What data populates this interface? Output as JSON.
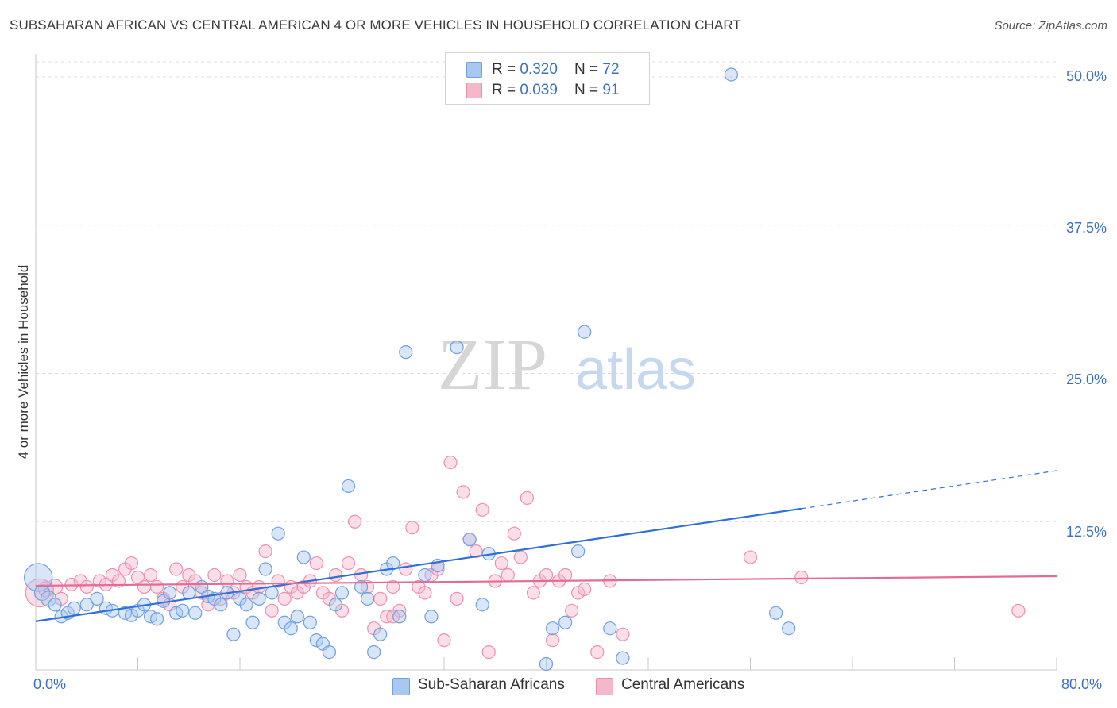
{
  "title": "SUBSAHARAN AFRICAN VS CENTRAL AMERICAN 4 OR MORE VEHICLES IN HOUSEHOLD CORRELATION CHART",
  "source": "Source: ZipAtlas.com",
  "watermark": {
    "zip": "ZIP",
    "atlas": "atlas"
  },
  "legend_top": [
    {
      "r_label": "R = ",
      "r_value": "0.320",
      "n_label": "N = ",
      "n_value": "72",
      "color": "#a8c8f0"
    },
    {
      "r_label": "R = ",
      "r_value": "0.039",
      "n_label": "N = ",
      "n_value": "91",
      "color": "#f5b8cb"
    }
  ],
  "legend_bottom": [
    {
      "label": "Sub-Saharan Africans",
      "color": "#a8c8f0"
    },
    {
      "label": "Central Americans",
      "color": "#f5b8cb"
    }
  ],
  "axis": {
    "x_min_label": "0.0%",
    "x_max_label": "80.0%",
    "y_ticks": [
      "12.5%",
      "25.0%",
      "37.5%",
      "50.0%"
    ],
    "ylabel": "4 or more Vehicles in Household"
  },
  "chart_data": {
    "type": "scatter",
    "xlim": [
      0,
      80
    ],
    "ylim": [
      0,
      51.5
    ],
    "y_gridlines": [
      12.5,
      25,
      37.5,
      50
    ],
    "series": [
      {
        "name": "Sub-Saharan Africans",
        "color": "#6fa0e0",
        "fill": "#a8c8f0",
        "trend": {
          "x0": 0,
          "y0": 4.1,
          "x1": 60,
          "y1": 13.6,
          "dash_to_x": 80,
          "dash_to_y": 16.8,
          "color": "#2f6fd6"
        },
        "points": [
          [
            0.2,
            7.8,
            22
          ],
          [
            0.5,
            6.5,
            12
          ],
          [
            1.0,
            6.0,
            12
          ],
          [
            1.5,
            5.5,
            10
          ],
          [
            2.0,
            4.5,
            10
          ],
          [
            2.5,
            4.8,
            10
          ],
          [
            3.0,
            5.2,
            10
          ],
          [
            4.0,
            5.5,
            10
          ],
          [
            4.8,
            6.0,
            10
          ],
          [
            5.5,
            5.2,
            10
          ],
          [
            6.0,
            5.0,
            10
          ],
          [
            7.0,
            4.8,
            10
          ],
          [
            7.5,
            4.6,
            10
          ],
          [
            8.0,
            5.0,
            10
          ],
          [
            8.5,
            5.5,
            10
          ],
          [
            9.0,
            4.5,
            10
          ],
          [
            9.5,
            4.3,
            10
          ],
          [
            10.0,
            5.8,
            10
          ],
          [
            10.5,
            6.5,
            10
          ],
          [
            11.0,
            4.8,
            10
          ],
          [
            11.5,
            5.0,
            10
          ],
          [
            12.0,
            6.5,
            10
          ],
          [
            12.5,
            4.8,
            10
          ],
          [
            13.0,
            7.0,
            10
          ],
          [
            13.5,
            6.2,
            10
          ],
          [
            14.0,
            6.0,
            10
          ],
          [
            14.5,
            5.5,
            10
          ],
          [
            15.0,
            6.5,
            10
          ],
          [
            15.5,
            3.0,
            10
          ],
          [
            16.0,
            6.0,
            10
          ],
          [
            16.5,
            5.5,
            10
          ],
          [
            17.0,
            4.0,
            10
          ],
          [
            17.5,
            6.0,
            10
          ],
          [
            18.0,
            8.5,
            10
          ],
          [
            18.5,
            6.5,
            10
          ],
          [
            19.0,
            11.5,
            10
          ],
          [
            19.5,
            4.0,
            10
          ],
          [
            20.0,
            3.5,
            10
          ],
          [
            20.5,
            4.5,
            10
          ],
          [
            21.0,
            9.5,
            10
          ],
          [
            21.5,
            4.0,
            10
          ],
          [
            22.0,
            2.5,
            10
          ],
          [
            22.5,
            2.2,
            10
          ],
          [
            23.0,
            1.5,
            10
          ],
          [
            23.5,
            5.5,
            10
          ],
          [
            24.0,
            6.5,
            10
          ],
          [
            24.5,
            15.5,
            10
          ],
          [
            25.5,
            7.0,
            10
          ],
          [
            26.0,
            6.0,
            10
          ],
          [
            26.5,
            1.5,
            10
          ],
          [
            27.0,
            3.0,
            10
          ],
          [
            27.5,
            8.5,
            10
          ],
          [
            28.0,
            9.0,
            10
          ],
          [
            28.5,
            4.5,
            10
          ],
          [
            29.0,
            26.8,
            10
          ],
          [
            30.5,
            8.0,
            10
          ],
          [
            31.0,
            4.5,
            10
          ],
          [
            31.5,
            8.8,
            10
          ],
          [
            33.0,
            27.2,
            10
          ],
          [
            34.0,
            11.0,
            10
          ],
          [
            35.0,
            5.5,
            10
          ],
          [
            35.5,
            9.8,
            10
          ],
          [
            40.0,
            0.5,
            10
          ],
          [
            40.5,
            3.5,
            10
          ],
          [
            41.5,
            4.0,
            10
          ],
          [
            42.5,
            10.0,
            10
          ],
          [
            43.0,
            28.5,
            10
          ],
          [
            45.0,
            3.5,
            10
          ],
          [
            46.0,
            1.0,
            10
          ],
          [
            54.5,
            50.2,
            10
          ],
          [
            58.0,
            4.8,
            10
          ],
          [
            59.0,
            3.5,
            10
          ]
        ]
      },
      {
        "name": "Central Americans",
        "color": "#ef8fae",
        "fill": "#f5b8cb",
        "trend": {
          "x0": 0,
          "y0": 7.1,
          "x1": 80,
          "y1": 7.9,
          "color": "#e36b95"
        },
        "points": [
          [
            0.3,
            6.5,
            22
          ],
          [
            0.8,
            6.8,
            12
          ],
          [
            1.5,
            7.0,
            12
          ],
          [
            2.0,
            6.0,
            10
          ],
          [
            2.8,
            7.2,
            10
          ],
          [
            3.5,
            7.5,
            10
          ],
          [
            4.0,
            7.0,
            10
          ],
          [
            5.0,
            7.5,
            10
          ],
          [
            5.5,
            7.2,
            10
          ],
          [
            6.0,
            8.0,
            10
          ],
          [
            6.5,
            7.5,
            10
          ],
          [
            7.0,
            8.5,
            10
          ],
          [
            7.5,
            9.0,
            10
          ],
          [
            8.0,
            7.8,
            10
          ],
          [
            8.5,
            7.0,
            10
          ],
          [
            9.0,
            8.0,
            10
          ],
          [
            9.5,
            7.0,
            10
          ],
          [
            10.0,
            6.0,
            10
          ],
          [
            10.5,
            5.5,
            10
          ],
          [
            11.0,
            8.5,
            10
          ],
          [
            11.5,
            7.0,
            10
          ],
          [
            12.0,
            8.0,
            10
          ],
          [
            12.5,
            7.5,
            10
          ],
          [
            13.0,
            6.5,
            10
          ],
          [
            13.5,
            5.5,
            10
          ],
          [
            14.0,
            8.0,
            10
          ],
          [
            14.5,
            6.0,
            10
          ],
          [
            15.0,
            7.5,
            10
          ],
          [
            15.5,
            6.5,
            10
          ],
          [
            16.0,
            8.0,
            10
          ],
          [
            16.5,
            7.0,
            10
          ],
          [
            17.0,
            6.5,
            10
          ],
          [
            17.5,
            7.0,
            10
          ],
          [
            18.0,
            10.0,
            10
          ],
          [
            18.5,
            5.0,
            10
          ],
          [
            19.0,
            7.5,
            10
          ],
          [
            19.5,
            6.0,
            10
          ],
          [
            20.0,
            7.0,
            10
          ],
          [
            20.5,
            6.5,
            10
          ],
          [
            21.0,
            7.0,
            10
          ],
          [
            21.5,
            7.5,
            10
          ],
          [
            22.0,
            9.0,
            10
          ],
          [
            22.5,
            6.5,
            10
          ],
          [
            23.0,
            6.0,
            10
          ],
          [
            23.5,
            8.0,
            10
          ],
          [
            24.0,
            5.0,
            10
          ],
          [
            24.5,
            9.0,
            10
          ],
          [
            25.0,
            12.5,
            10
          ],
          [
            25.5,
            8.0,
            10
          ],
          [
            26.0,
            7.0,
            10
          ],
          [
            26.5,
            3.5,
            10
          ],
          [
            27.0,
            6.0,
            10
          ],
          [
            27.5,
            4.5,
            10
          ],
          [
            28.0,
            7.0,
            10
          ],
          [
            28.5,
            5.0,
            10
          ],
          [
            29.0,
            8.5,
            10
          ],
          [
            29.5,
            12.0,
            10
          ],
          [
            30.0,
            7.0,
            10
          ],
          [
            30.5,
            6.5,
            10
          ],
          [
            31.0,
            8.0,
            10
          ],
          [
            31.5,
            8.5,
            10
          ],
          [
            32.0,
            2.5,
            10
          ],
          [
            32.5,
            17.5,
            10
          ],
          [
            33.0,
            6.0,
            10
          ],
          [
            33.5,
            15.0,
            10
          ],
          [
            34.0,
            11.0,
            10
          ],
          [
            34.5,
            10.0,
            10
          ],
          [
            35.0,
            13.5,
            10
          ],
          [
            35.5,
            1.5,
            10
          ],
          [
            36.0,
            7.5,
            10
          ],
          [
            36.5,
            9.0,
            10
          ],
          [
            37.0,
            8.0,
            10
          ],
          [
            37.5,
            11.5,
            10
          ],
          [
            38.0,
            9.5,
            10
          ],
          [
            38.5,
            14.5,
            10
          ],
          [
            39.0,
            6.5,
            10
          ],
          [
            39.5,
            7.5,
            10
          ],
          [
            40.0,
            8.0,
            10
          ],
          [
            40.5,
            2.5,
            10
          ],
          [
            41.0,
            7.5,
            10
          ],
          [
            41.5,
            8.0,
            10
          ],
          [
            42.0,
            5.0,
            10
          ],
          [
            42.5,
            6.5,
            10
          ],
          [
            43.0,
            6.8,
            10
          ],
          [
            44.0,
            1.5,
            10
          ],
          [
            45.0,
            7.5,
            10
          ],
          [
            46.0,
            3.0,
            10
          ],
          [
            56.0,
            9.5,
            10
          ],
          [
            60.0,
            7.8,
            10
          ],
          [
            77.0,
            5.0,
            10
          ],
          [
            28.0,
            4.5,
            10
          ]
        ]
      }
    ]
  }
}
